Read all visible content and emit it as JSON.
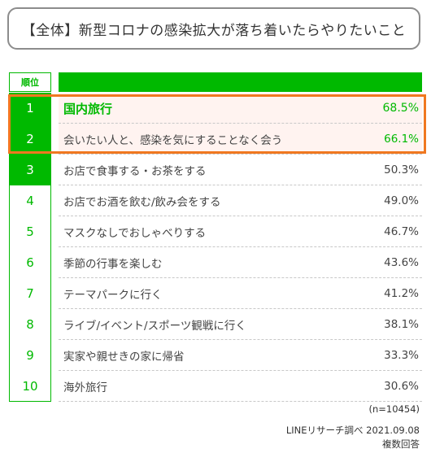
{
  "title": "【全体】新型コロナの感染拡大が落ち着いたらやりたいこと",
  "header": {
    "rank_label": "順位"
  },
  "rows": [
    {
      "rank": "1",
      "label": "国内旅行",
      "value": "68.5%"
    },
    {
      "rank": "2",
      "label": "会いたい人と、感染を気にすることなく会う",
      "value": "66.1%"
    },
    {
      "rank": "3",
      "label": "お店で食事する・お茶をする",
      "value": "50.3%"
    },
    {
      "rank": "4",
      "label": "お店でお酒を飲む/飲み会をする",
      "value": "49.0%"
    },
    {
      "rank": "5",
      "label": "マスクなしでおしゃべりする",
      "value": "46.7%"
    },
    {
      "rank": "6",
      "label": "季節の行事を楽しむ",
      "value": "43.6%"
    },
    {
      "rank": "7",
      "label": "テーマパークに行く",
      "value": "41.2%"
    },
    {
      "rank": "8",
      "label": "ライブ/イベント/スポーツ観戦に行く",
      "value": "38.1%"
    },
    {
      "rank": "9",
      "label": "実家や親せきの家に帰省",
      "value": "33.3%"
    },
    {
      "rank": "10",
      "label": "海外旅行",
      "value": "30.6%"
    }
  ],
  "footer": {
    "sample": "(n=10454)",
    "source": "LINEリサーチ調べ 2021.09.08",
    "note": "複数回答"
  },
  "colors": {
    "accent": "#00b900",
    "highlight": "#f07820",
    "highlight_bg": "#fff3f0"
  }
}
